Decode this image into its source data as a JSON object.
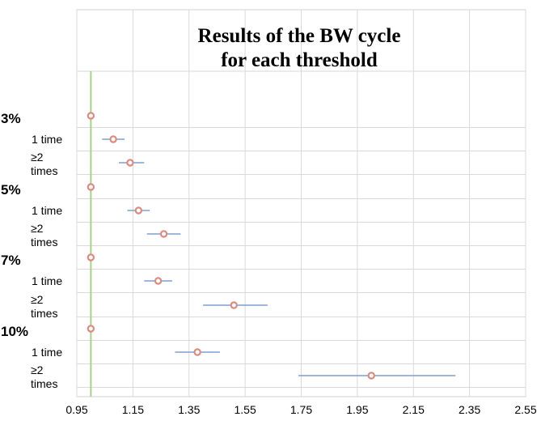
{
  "chart_data": {
    "type": "scatter",
    "title": [
      "Results of the BW cycle",
      "for each threshold"
    ],
    "xlabel": "",
    "ylabel": "",
    "xlim": [
      0.95,
      2.55
    ],
    "xticks": [
      "0.95",
      "1.15",
      "1.35",
      "1.55",
      "1.75",
      "1.95",
      "2.15",
      "2.35",
      "2.55"
    ],
    "reference_line": 1.0,
    "reference_color": "#a9d18e",
    "marker_color": "#d98c7f",
    "errorbar_color": "#7f9fd3",
    "grid": true,
    "rows": [
      {
        "group": "3%",
        "label": "",
        "estimate": 1.0,
        "lower": null,
        "upper": null
      },
      {
        "group": "",
        "label": "1 time",
        "estimate": 1.08,
        "lower": 1.04,
        "upper": 1.12
      },
      {
        "group": "",
        "label": "≥2 times",
        "estimate": 1.14,
        "lower": 1.1,
        "upper": 1.19
      },
      {
        "group": "5%",
        "label": "",
        "estimate": 1.0,
        "lower": null,
        "upper": null
      },
      {
        "group": "",
        "label": "1 time",
        "estimate": 1.17,
        "lower": 1.13,
        "upper": 1.21
      },
      {
        "group": "",
        "label": "≥2 times",
        "estimate": 1.26,
        "lower": 1.2,
        "upper": 1.32
      },
      {
        "group": "7%",
        "label": "",
        "estimate": 1.0,
        "lower": null,
        "upper": null
      },
      {
        "group": "",
        "label": "1 time",
        "estimate": 1.24,
        "lower": 1.19,
        "upper": 1.29
      },
      {
        "group": "",
        "label": "≥2 times",
        "estimate": 1.51,
        "lower": 1.4,
        "upper": 1.63
      },
      {
        "group": "10%",
        "label": "",
        "estimate": 1.0,
        "lower": null,
        "upper": null
      },
      {
        "group": "",
        "label": "1 time",
        "estimate": 1.38,
        "lower": 1.3,
        "upper": 1.46
      },
      {
        "group": "",
        "label": "≥2 times",
        "estimate": 2.0,
        "lower": 1.74,
        "upper": 2.3
      }
    ]
  }
}
